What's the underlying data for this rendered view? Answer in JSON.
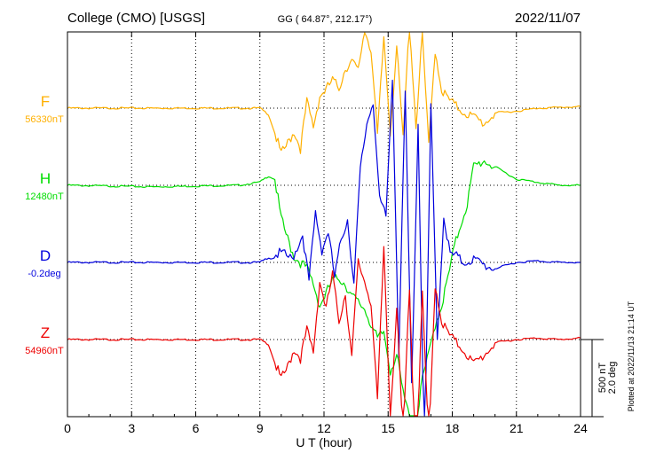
{
  "header": {
    "station": "College (CMO)  [USGS]",
    "coords": "GG ( 64.87°, 212.17°)",
    "date": "2022/11/07"
  },
  "footer": {
    "plotted": "Plotted at 2022/11/13 21:14 UT"
  },
  "colors": {
    "F": "#ffb000",
    "H": "#00dd00",
    "D": "#0000dd",
    "Z": "#ee0000"
  },
  "chart_data": {
    "type": "line",
    "title": "",
    "xlabel": "U T (hour)",
    "ylabel": "",
    "xlim": [
      0,
      24
    ],
    "x_ticks": [
      0,
      3,
      6,
      9,
      12,
      15,
      18,
      21,
      24
    ],
    "grid": true,
    "scale_bar": {
      "nT": "500 nT",
      "deg": "2.0 deg"
    },
    "series": [
      {
        "key": "F",
        "name": "F",
        "baseline_label": "56330nT",
        "x": [
          0,
          9,
          9.4,
          9.7,
          10.0,
          10.3,
          10.6,
          10.9,
          11.2,
          11.5,
          11.8,
          12.1,
          12.4,
          12.7,
          13.0,
          13.3,
          13.6,
          13.9,
          14.2,
          14.5,
          14.8,
          15.1,
          15.4,
          15.7,
          16.0,
          16.3,
          16.6,
          16.9,
          17.2,
          17.5,
          17.8,
          18.1,
          18.5,
          19.0,
          19.5,
          20.0,
          21,
          22,
          23,
          24
        ],
        "values": [
          0,
          0,
          -40,
          -160,
          -300,
          -230,
          -150,
          -260,
          40,
          -120,
          80,
          120,
          180,
          130,
          260,
          300,
          240,
          520,
          380,
          -180,
          460,
          -150,
          400,
          -200,
          560,
          -120,
          480,
          -250,
          380,
          120,
          60,
          20,
          -20,
          -60,
          -100,
          -30,
          -20,
          0,
          5,
          10
        ]
      },
      {
        "key": "H",
        "name": "H",
        "baseline_label": "12480nT",
        "x": [
          0,
          4,
          8,
          9,
          9.4,
          9.7,
          10.0,
          10.3,
          10.6,
          10.9,
          11.2,
          11.5,
          11.8,
          12.1,
          12.4,
          12.7,
          13.0,
          13.3,
          13.6,
          13.9,
          14.2,
          14.5,
          14.8,
          15.1,
          15.4,
          15.7,
          16.0,
          16.3,
          16.6,
          16.9,
          17.2,
          17.5,
          17.8,
          18.1,
          18.4,
          18.7,
          19.0,
          19.5,
          20.0,
          21,
          22,
          23,
          24
        ],
        "values": [
          0,
          -10,
          0,
          20,
          60,
          40,
          -220,
          -350,
          -460,
          -500,
          -540,
          -640,
          -780,
          -700,
          -620,
          -600,
          -640,
          -720,
          -760,
          -800,
          -900,
          -1000,
          -950,
          -1200,
          -1100,
          -1350,
          -1500,
          -1600,
          -1250,
          -1100,
          -900,
          -780,
          -600,
          -400,
          -250,
          -120,
          120,
          160,
          120,
          40,
          20,
          0,
          0
        ]
      },
      {
        "key": "D",
        "name": "D",
        "baseline_label": "-0.2deg",
        "x": [
          0,
          9,
          9.5,
          10.0,
          10.5,
          11.0,
          11.3,
          11.6,
          11.9,
          12.2,
          12.5,
          12.8,
          13.1,
          13.4,
          13.7,
          14.0,
          14.3,
          14.6,
          14.9,
          15.2,
          15.5,
          15.8,
          16.1,
          16.4,
          16.7,
          17.0,
          17.3,
          17.6,
          17.9,
          18.2,
          18.5,
          19.0,
          19.5,
          20.0,
          21,
          22,
          23,
          24
        ],
        "values": [
          0,
          0,
          40,
          60,
          20,
          180,
          -120,
          320,
          80,
          200,
          -100,
          150,
          280,
          -140,
          600,
          900,
          1050,
          400,
          300,
          1200,
          -600,
          1100,
          -800,
          900,
          -1300,
          1000,
          -500,
          300,
          50,
          40,
          0,
          20,
          -20,
          -40,
          0,
          10,
          0,
          0
        ]
      },
      {
        "key": "Z",
        "name": "Z",
        "baseline_label": "54960nT",
        "x": [
          0,
          9,
          9.4,
          9.7,
          10.0,
          10.3,
          10.6,
          10.9,
          11.2,
          11.5,
          11.8,
          12.1,
          12.4,
          12.7,
          13.0,
          13.3,
          13.6,
          13.9,
          14.2,
          14.5,
          14.8,
          15.1,
          15.4,
          15.7,
          16.0,
          16.3,
          16.6,
          16.9,
          17.2,
          17.5,
          17.8,
          18.1,
          18.5,
          19.0,
          19.5,
          20.0,
          21,
          22,
          23,
          24
        ],
        "values": [
          0,
          0,
          -30,
          -150,
          -260,
          -180,
          -60,
          -120,
          60,
          -80,
          380,
          200,
          420,
          120,
          300,
          -120,
          500,
          380,
          240,
          -400,
          600,
          -500,
          200,
          -650,
          350,
          -900,
          300,
          -700,
          360,
          120,
          40,
          -10,
          -60,
          -160,
          -100,
          -20,
          0,
          10,
          0,
          10
        ]
      }
    ]
  }
}
